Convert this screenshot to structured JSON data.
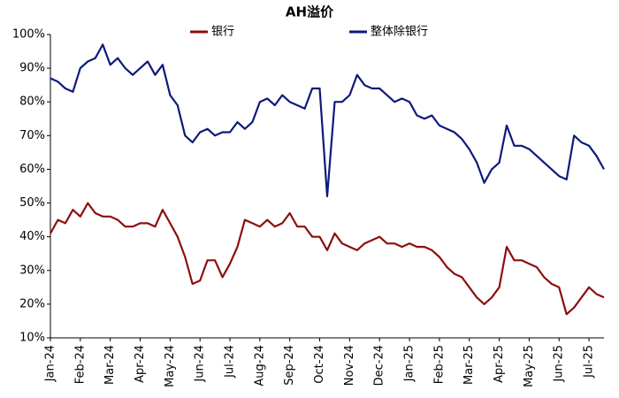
{
  "chart_data": {
    "type": "line",
    "title": "AH溢价",
    "categories": [
      "Jan-24",
      null,
      null,
      null,
      "Feb-24",
      null,
      null,
      null,
      "Mar-24",
      null,
      null,
      null,
      "Apr-24",
      null,
      null,
      null,
      "May-24",
      null,
      null,
      null,
      "Jun-24",
      null,
      null,
      null,
      "Jul-24",
      null,
      null,
      null,
      "Aug-24",
      null,
      null,
      null,
      "Sep-24",
      null,
      null,
      null,
      "Oct-24",
      null,
      null,
      null,
      "Nov-24",
      null,
      null,
      null,
      "Dec-24",
      null,
      null,
      null,
      "Jan-25",
      null,
      null,
      null,
      "Feb-25",
      null,
      null,
      null,
      "Mar-25",
      null,
      null,
      null,
      "Apr-25",
      null,
      null,
      null,
      "May-25",
      null,
      null,
      null,
      "Jun-25",
      null,
      null,
      null,
      "Jul-25",
      null,
      null
    ],
    "series": [
      {
        "name": "银行",
        "color": "#8b0f0f",
        "values": [
          41,
          45,
          44,
          48,
          46,
          50,
          47,
          46,
          46,
          45,
          43,
          43,
          44,
          44,
          43,
          48,
          44,
          40,
          34,
          26,
          27,
          33,
          33,
          28,
          32,
          37,
          45,
          44,
          43,
          45,
          43,
          44,
          47,
          43,
          43,
          40,
          40,
          36,
          41,
          38,
          37,
          36,
          38,
          39,
          40,
          38,
          38,
          37,
          38,
          37,
          37,
          36,
          34,
          31,
          29,
          28,
          25,
          22,
          20,
          22,
          25,
          37,
          33,
          33,
          32,
          31,
          28,
          26,
          25,
          17,
          19,
          22,
          25,
          23,
          22
        ]
      },
      {
        "name": "整体除银行",
        "color": "#0d1a7a",
        "values": [
          87,
          86,
          84,
          83,
          90,
          92,
          93,
          97,
          91,
          93,
          90,
          88,
          90,
          92,
          88,
          91,
          82,
          79,
          70,
          68,
          71,
          72,
          70,
          71,
          71,
          74,
          72,
          74,
          80,
          81,
          79,
          82,
          80,
          79,
          78,
          84,
          84,
          52,
          80,
          80,
          82,
          88,
          85,
          84,
          84,
          82,
          80,
          81,
          80,
          76,
          75,
          76,
          73,
          72,
          71,
          69,
          66,
          62,
          56,
          60,
          62,
          73,
          67,
          67,
          66,
          64,
          62,
          60,
          58,
          57,
          70,
          68,
          67,
          64,
          60
        ]
      }
    ],
    "ylim": [
      10,
      100
    ],
    "yticks": [
      {
        "value": 10,
        "label": "10%"
      },
      {
        "value": 20,
        "label": "20%"
      },
      {
        "value": 30,
        "label": "30%"
      },
      {
        "value": 40,
        "label": "40%"
      },
      {
        "value": 50,
        "label": "50%"
      },
      {
        "value": 60,
        "label": "60%"
      },
      {
        "value": 70,
        "label": "70%"
      },
      {
        "value": 80,
        "label": "80%"
      },
      {
        "value": 90,
        "label": "90%"
      },
      {
        "value": 100,
        "label": "100%"
      }
    ],
    "legend": "top"
  }
}
